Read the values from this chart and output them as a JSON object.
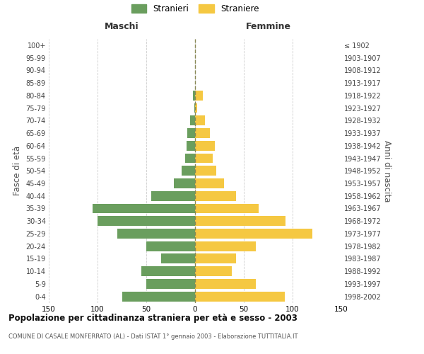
{
  "age_groups": [
    "0-4",
    "5-9",
    "10-14",
    "15-19",
    "20-24",
    "25-29",
    "30-34",
    "35-39",
    "40-44",
    "45-49",
    "50-54",
    "55-59",
    "60-64",
    "65-69",
    "70-74",
    "75-79",
    "80-84",
    "85-89",
    "90-94",
    "95-99",
    "100+"
  ],
  "birth_years": [
    "1998-2002",
    "1993-1997",
    "1988-1992",
    "1983-1987",
    "1978-1982",
    "1973-1977",
    "1968-1972",
    "1963-1967",
    "1958-1962",
    "1953-1957",
    "1948-1952",
    "1943-1947",
    "1938-1942",
    "1933-1937",
    "1928-1932",
    "1923-1927",
    "1918-1922",
    "1913-1917",
    "1908-1912",
    "1903-1907",
    "≤ 1902"
  ],
  "males": [
    75,
    50,
    55,
    35,
    50,
    80,
    100,
    105,
    45,
    22,
    14,
    10,
    9,
    8,
    5,
    1,
    2,
    0,
    0,
    0,
    0
  ],
  "females": [
    92,
    62,
    38,
    42,
    62,
    120,
    93,
    65,
    42,
    30,
    22,
    18,
    20,
    15,
    10,
    2,
    8,
    0,
    0,
    0,
    0
  ],
  "male_color": "#6a9e5e",
  "female_color": "#f5c842",
  "title": "Popolazione per cittadinanza straniera per età e sesso - 2003",
  "subtitle": "COMUNE DI CASALE MONFERRATO (AL) - Dati ISTAT 1° gennaio 2003 - Elaborazione TUTTITALIA.IT",
  "ylabel_left": "Fasce di età",
  "ylabel_right": "Anni di nascita",
  "xlabel_left": "Maschi",
  "xlabel_right": "Femmine",
  "legend_males": "Stranieri",
  "legend_females": "Straniere",
  "xlim": 150,
  "background_color": "#ffffff",
  "grid_color": "#cccccc"
}
